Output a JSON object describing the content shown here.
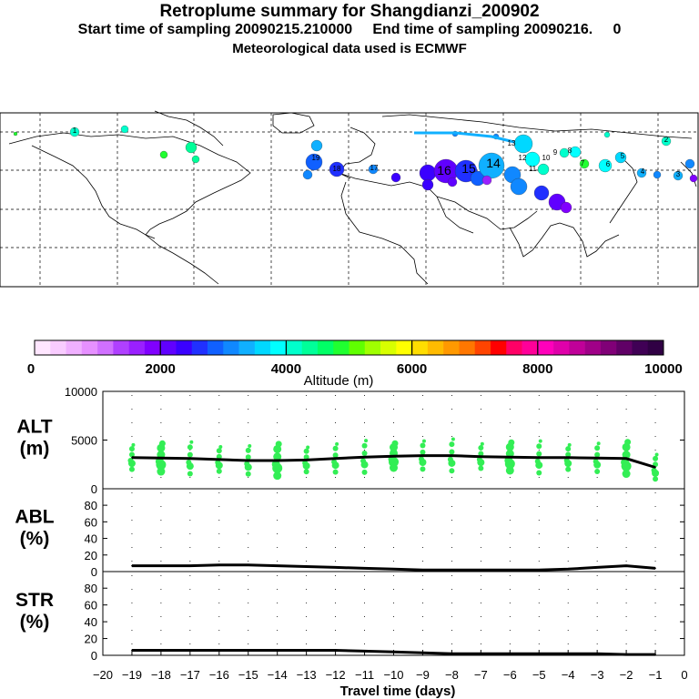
{
  "header": {
    "title": "Retroplume summary for Shangdianzi_200902",
    "subtitle": "Start time of sampling 20090215.210000     End time of sampling 20090216.     0",
    "met": "Meteorological data used is ECMWF"
  },
  "colorbar": {
    "label": "Altitude (m)",
    "tick_labels": [
      "0",
      "2000",
      "4000",
      "6000",
      "8000",
      "10000"
    ],
    "colors": [
      "#ffe6ff",
      "#f9ccff",
      "#f0b0ff",
      "#e690ff",
      "#d070ff",
      "#b040ff",
      "#9a20ff",
      "#8000ff",
      "#6000ff",
      "#3a00ff",
      "#2030ff",
      "#1060ff",
      "#1088ff",
      "#10b0ff",
      "#00d8ff",
      "#00ffff",
      "#00ffcc",
      "#00ff99",
      "#00ff66",
      "#20ff30",
      "#60ff00",
      "#a0ff00",
      "#d8ff00",
      "#ffff00",
      "#ffdd00",
      "#ffbb00",
      "#ff9900",
      "#ff7700",
      "#ff4400",
      "#ff0000",
      "#ff0066",
      "#ff0099",
      "#ff00bb",
      "#e000aa",
      "#c00099",
      "#a00088",
      "#800077",
      "#600066",
      "#400055",
      "#300044"
    ]
  },
  "map": {
    "region_label": "",
    "plume_color_note": "altitude-coded",
    "labels": [
      "19",
      "18",
      "17",
      "16",
      "15",
      "14",
      "13",
      "12",
      "11",
      "10",
      "9",
      "8",
      "7",
      "6",
      "5",
      "4",
      "3",
      "2",
      "1"
    ]
  },
  "chart_data": [
    {
      "type": "line",
      "panel": "ALT",
      "ylabel": "ALT\n(m)",
      "ylim": [
        0,
        10000
      ],
      "yticks": [
        0,
        5000,
        10000
      ],
      "x": [
        -19,
        -18,
        -17,
        -16,
        -15,
        -14,
        -13,
        -12,
        -11,
        -10,
        -9,
        -8,
        -7,
        -6,
        -5,
        -4,
        -3,
        -2,
        -1
      ],
      "series": [
        {
          "name": "mean altitude",
          "values": [
            3200,
            3150,
            3100,
            3000,
            2900,
            2900,
            2950,
            3100,
            3250,
            3350,
            3400,
            3400,
            3300,
            3250,
            3200,
            3200,
            3150,
            3100,
            2200
          ]
        }
      ],
      "scatter_color": "#33ee55"
    },
    {
      "type": "line",
      "panel": "ABL",
      "ylabel": "ABL\n(%)",
      "ylim": [
        0,
        90
      ],
      "yticks": [
        0,
        20,
        40,
        60,
        80
      ],
      "x": [
        -19,
        -18,
        -17,
        -16,
        -15,
        -14,
        -13,
        -12,
        -11,
        -10,
        -9,
        -8,
        -7,
        -6,
        -5,
        -4,
        -3,
        -2,
        -1
      ],
      "series": [
        {
          "name": "fraction in ABL",
          "values": [
            7,
            7,
            7,
            8,
            8,
            7,
            6,
            5,
            4,
            3,
            2,
            2,
            2,
            2,
            2,
            3,
            5,
            7,
            4
          ]
        }
      ]
    },
    {
      "type": "line",
      "panel": "STR",
      "ylabel": "STR\n(%)",
      "ylim": [
        0,
        90
      ],
      "yticks": [
        0,
        20,
        40,
        60,
        80
      ],
      "x": [
        -19,
        -18,
        -17,
        -16,
        -15,
        -14,
        -13,
        -12,
        -11,
        -10,
        -9,
        -8,
        -7,
        -6,
        -5,
        -4,
        -3,
        -2,
        -1
      ],
      "series": [
        {
          "name": "fraction in stratosphere",
          "values": [
            6,
            6,
            6,
            6,
            6,
            6,
            6,
            6,
            5,
            4,
            3,
            2,
            2,
            2,
            2,
            2,
            2,
            1,
            1
          ]
        }
      ]
    }
  ],
  "xaxis": {
    "label": "Travel time (days)",
    "tick_labels": [
      "−20",
      "−19",
      "−18",
      "−17",
      "−16",
      "−15",
      "−14",
      "−13",
      "−12",
      "−11",
      "−10",
      "−9",
      "−8",
      "−7",
      "−6",
      "−5",
      "−4",
      "−3",
      "−2",
      "−1",
      "0"
    ]
  }
}
